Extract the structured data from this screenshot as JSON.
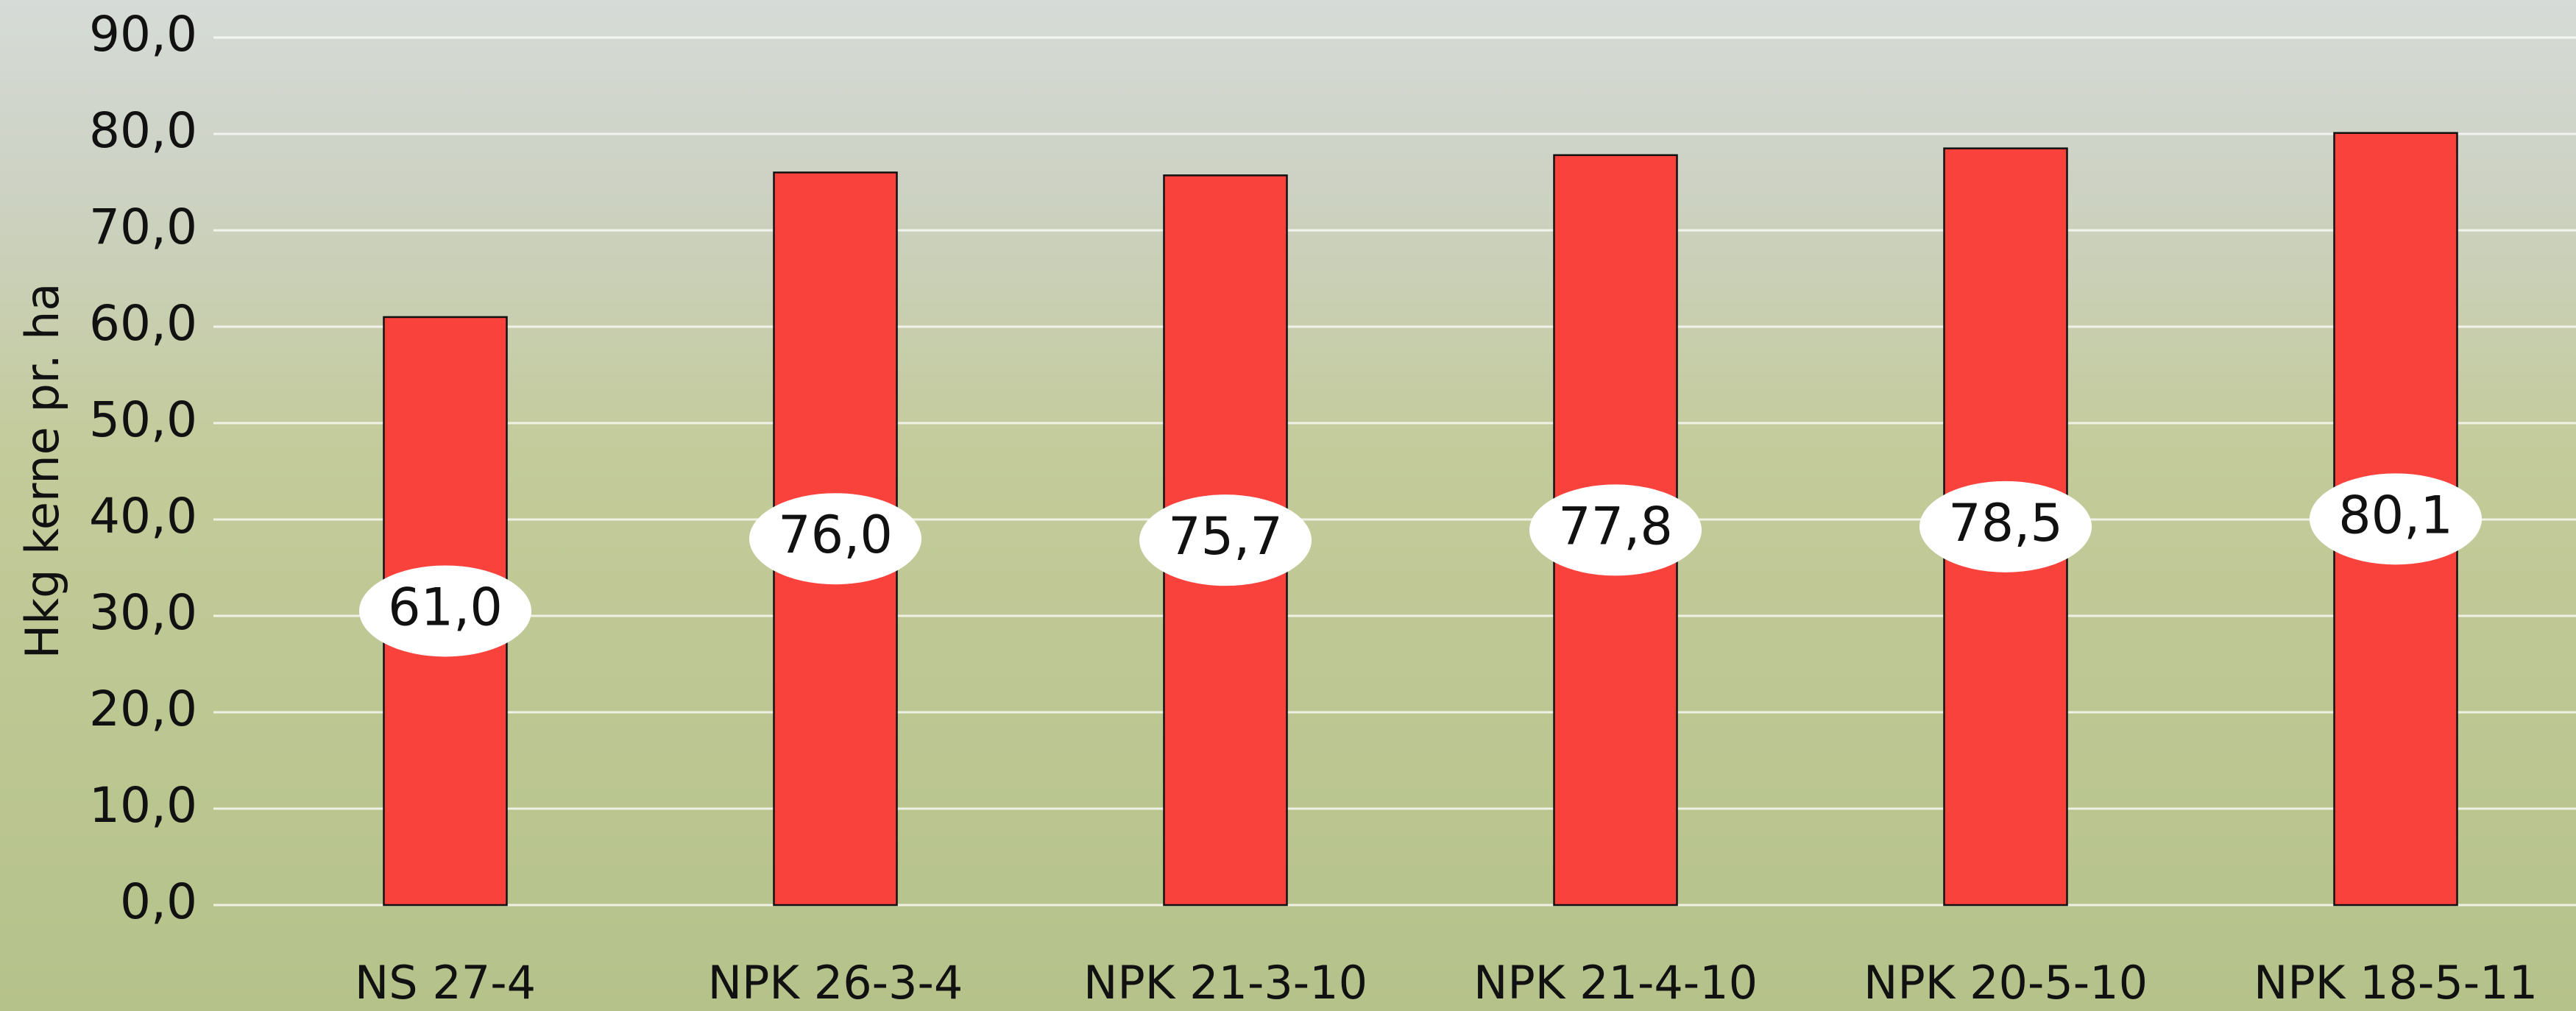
{
  "chart_data": {
    "type": "bar",
    "y_label": "Hkg kerne pr. ha",
    "categories": [
      "NS 27-4",
      "NPK 26-3-4",
      "NPK 21-3-10",
      "NPK 21-4-10",
      "NPK 20-5-10",
      "NPK 18-5-11"
    ],
    "values": [
      61.0,
      76.0,
      75.7,
      77.8,
      78.5,
      80.1
    ],
    "value_labels": [
      "61,0",
      "76,0",
      "75,7",
      "77,8",
      "78,5",
      "80,1"
    ],
    "color": "#fa423c",
    "ylim": [
      0,
      90
    ],
    "yticks": [
      {
        "value": 0,
        "label": "0,0"
      },
      {
        "value": 10,
        "label": "10,0"
      },
      {
        "value": 20,
        "label": "20,0"
      },
      {
        "value": 30,
        "label": "30,0"
      },
      {
        "value": 40,
        "label": "40,0"
      },
      {
        "value": 50,
        "label": "50,0"
      },
      {
        "value": 60,
        "label": "60,0"
      },
      {
        "value": 70,
        "label": "70,0"
      },
      {
        "value": 80,
        "label": "80,0"
      },
      {
        "value": 90,
        "label": "90,0"
      }
    ],
    "grid": true
  }
}
